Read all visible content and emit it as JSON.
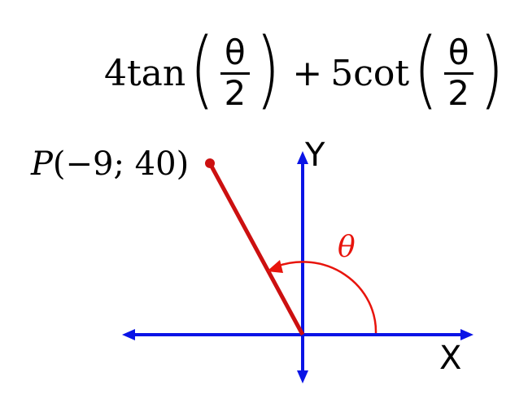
{
  "expression": {
    "term1_coef": "4tan",
    "term1_num": "θ",
    "term1_den": "2",
    "operator": "+",
    "term2_coef": "5cot",
    "term2_num": "θ",
    "term2_den": "2",
    "open_paren": "(",
    "close_paren": ")"
  },
  "point": {
    "name": "P",
    "coords": "(−9; 40)"
  },
  "axes": {
    "x_label": "X",
    "y_label": "Y"
  },
  "angle": {
    "label": "θ"
  },
  "colors": {
    "axis": "#0a14e6",
    "segment": "#cc1010",
    "angle_arc": "#e8140c"
  }
}
